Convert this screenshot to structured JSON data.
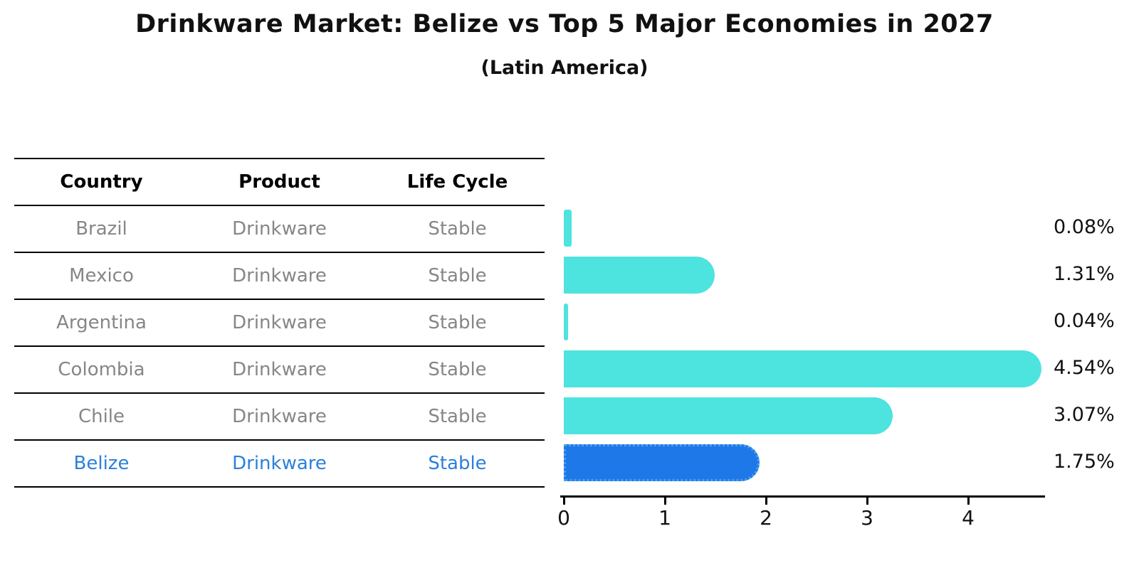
{
  "title": "Drinkware Market: Belize vs Top 5 Major Economies in 2027",
  "subtitle": "(Latin America)",
  "table": {
    "headers": [
      "Country",
      "Product",
      "Life Cycle"
    ],
    "rows": [
      {
        "country": "Brazil",
        "product": "Drinkware",
        "life_cycle": "Stable",
        "highlight": false
      },
      {
        "country": "Mexico",
        "product": "Drinkware",
        "life_cycle": "Stable",
        "highlight": false
      },
      {
        "country": "Argentina",
        "product": "Drinkware",
        "life_cycle": "Stable",
        "highlight": false
      },
      {
        "country": "Colombia",
        "product": "Drinkware",
        "life_cycle": "Stable",
        "highlight": false
      },
      {
        "country": "Chile",
        "product": "Drinkware",
        "life_cycle": "Stable",
        "highlight": false
      },
      {
        "country": "Belize",
        "product": "Drinkware",
        "life_cycle": "Stable",
        "highlight": true
      }
    ]
  },
  "chart_data": {
    "type": "bar",
    "orientation": "horizontal",
    "title": "Drinkware Market: Belize vs Top 5 Major Economies in 2027",
    "subtitle": "(Latin America)",
    "categories": [
      "Brazil",
      "Mexico",
      "Argentina",
      "Colombia",
      "Chile",
      "Belize"
    ],
    "values": [
      0.08,
      1.31,
      0.04,
      4.54,
      3.07,
      1.75
    ],
    "value_labels": [
      "0.08%",
      "1.31%",
      "0.04%",
      "4.54%",
      "3.07%",
      "1.75%"
    ],
    "xlabel": "",
    "ylabel": "",
    "xticks": [
      "0",
      "1",
      "2",
      "3",
      "4"
    ],
    "xlim": [
      0,
      4.76
    ],
    "grid": false,
    "legend": false,
    "highlight_category": "Belize",
    "highlight_index": 5,
    "colors": {
      "bar": "#4DE3DF",
      "highlight_bar": "#1E78E8",
      "highlight_bar_border": "#4C9FEF",
      "highlight_text": "#2B80D9",
      "row_text": "#868686",
      "header_text": "#000000",
      "axis": "#000000"
    }
  }
}
